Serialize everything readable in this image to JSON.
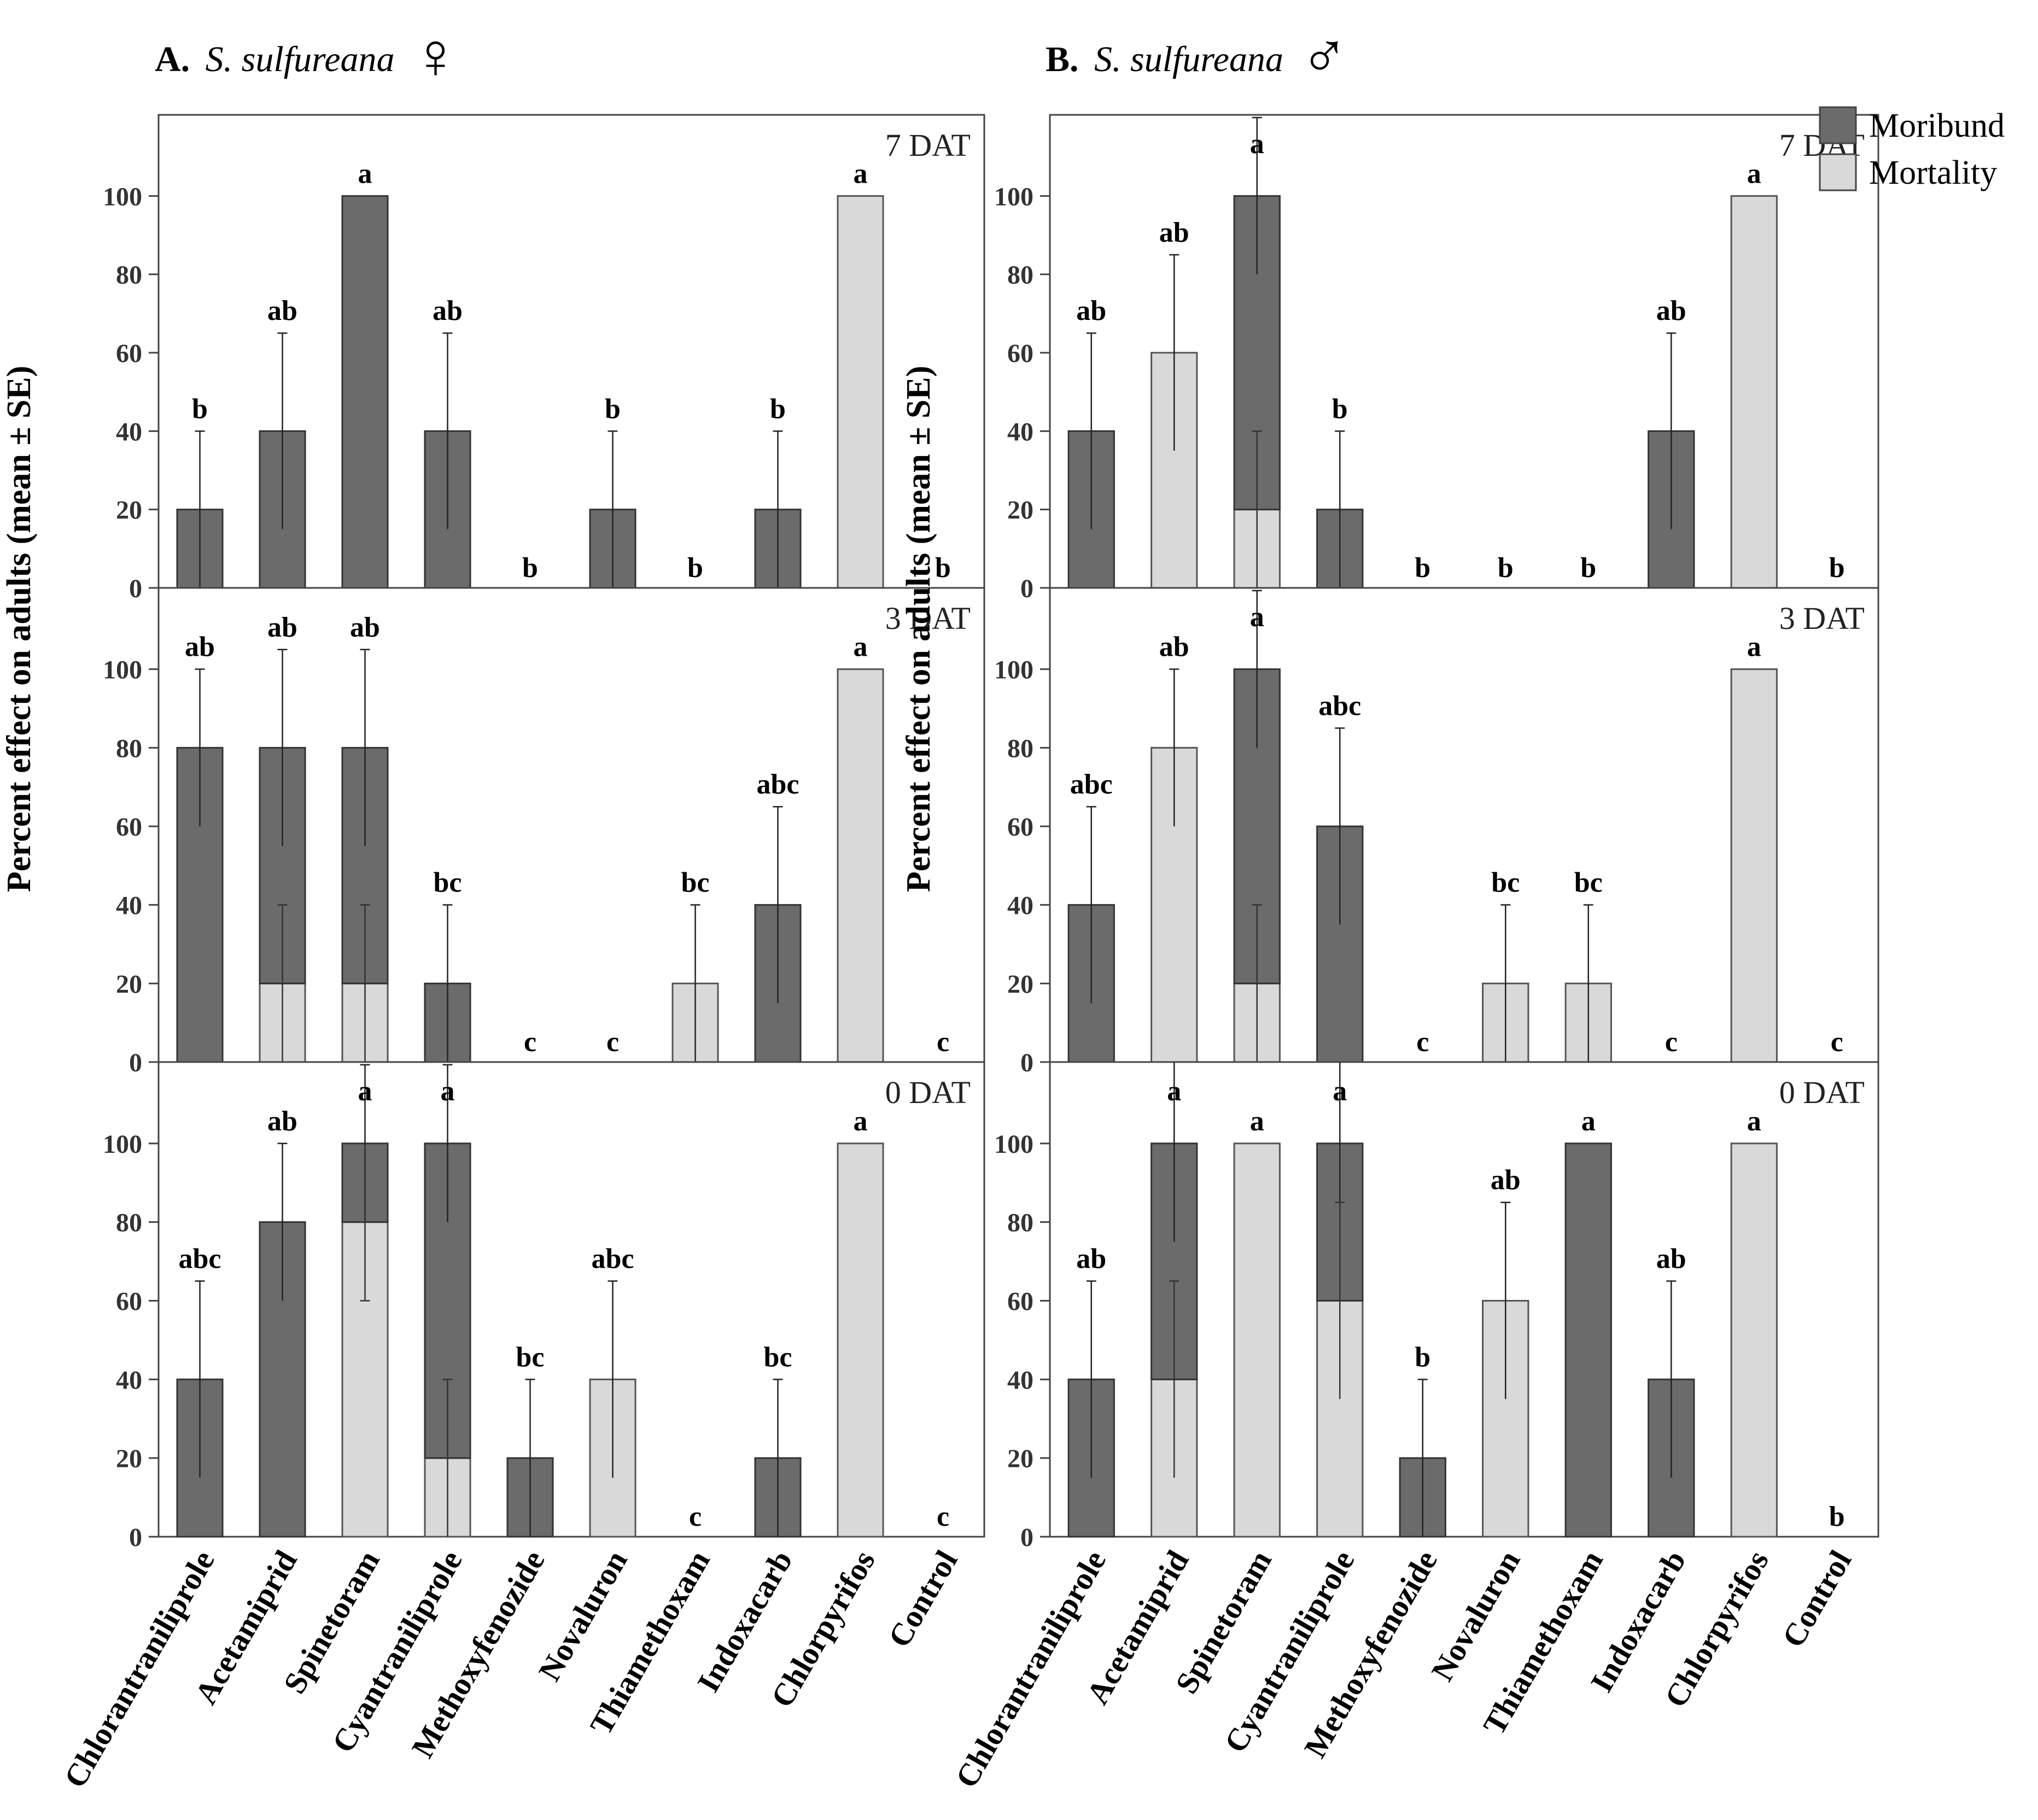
{
  "colors": {
    "moribund": "#6b6b6b",
    "mortality": "#d9d9d9",
    "frame": "#444444",
    "text": "#000000"
  },
  "legend": {
    "moribund": "Moribund",
    "mortality": "Mortality"
  },
  "y_axis_label": "Percent effect on adults (mean ± SE)",
  "chart_data": [
    {
      "type": "bar",
      "stacked": true,
      "panel_letter": "A.",
      "species": "S. sulfureana",
      "sex_symbol": "♀",
      "ylabel": "Percent effect on adults (mean ± SE)",
      "ylim": [
        0,
        120
      ],
      "yticks": [
        0,
        20,
        40,
        60,
        80,
        100
      ],
      "categories": [
        "Chlorantraniliprole",
        "Acetamiprid",
        "Spinetoram",
        "Cyantraniliprole",
        "Methoxyfenozide",
        "Novaluron",
        "Thiamethoxam",
        "Indoxacarb",
        "Chlorpyrifos",
        "Control"
      ],
      "subplots": [
        {
          "label": "7 DAT",
          "mortality": [
            0,
            0,
            0,
            0,
            0,
            0,
            0,
            0,
            100,
            0
          ],
          "moribund": [
            20,
            40,
            100,
            40,
            0,
            20,
            0,
            20,
            0,
            0
          ],
          "error_top": [
            40,
            65,
            null,
            65,
            null,
            40,
            null,
            40,
            null,
            null
          ],
          "mortality_error_top": [
            null,
            null,
            null,
            null,
            null,
            null,
            null,
            null,
            null,
            null
          ],
          "letters": [
            "b",
            "ab",
            "a",
            "ab",
            "b",
            "b",
            "b",
            "b",
            "a",
            "b"
          ]
        },
        {
          "label": "3 DAT",
          "mortality": [
            0,
            20,
            20,
            0,
            0,
            0,
            20,
            0,
            100,
            0
          ],
          "moribund": [
            80,
            60,
            60,
            20,
            0,
            0,
            0,
            40,
            0,
            0
          ],
          "error_top": [
            100,
            105,
            105,
            40,
            null,
            null,
            40,
            65,
            null,
            null
          ],
          "mortality_error_top": [
            null,
            40,
            40,
            null,
            null,
            null,
            null,
            null,
            null,
            null
          ],
          "letters": [
            "ab",
            "ab",
            "ab",
            "bc",
            "c",
            "c",
            "bc",
            "abc",
            "a",
            "c"
          ]
        },
        {
          "label": "0 DAT",
          "mortality": [
            0,
            0,
            80,
            20,
            0,
            40,
            0,
            0,
            100,
            0
          ],
          "moribund": [
            40,
            80,
            20,
            80,
            20,
            0,
            0,
            20,
            0,
            0
          ],
          "error_top": [
            65,
            100,
            120,
            120,
            40,
            65,
            null,
            40,
            null,
            null
          ],
          "mortality_error_top": [
            null,
            null,
            60,
            40,
            null,
            null,
            null,
            null,
            null,
            null
          ],
          "letters": [
            "abc",
            "ab",
            "a",
            "a",
            "bc",
            "abc",
            "c",
            "bc",
            "a",
            "c"
          ]
        }
      ]
    },
    {
      "type": "bar",
      "stacked": true,
      "panel_letter": "B.",
      "species": "S. sulfureana",
      "sex_symbol": "♂",
      "ylabel": "Percent effect on adults (mean ± SE)",
      "ylim": [
        0,
        120
      ],
      "yticks": [
        0,
        20,
        40,
        60,
        80,
        100
      ],
      "categories": [
        "Chlorantraniliprole",
        "Acetamiprid",
        "Spinetoram",
        "Cyantraniliprole",
        "Methoxyfenozide",
        "Novaluron",
        "Thiamethoxam",
        "Indoxacarb",
        "Chlorpyrifos",
        "Control"
      ],
      "subplots": [
        {
          "label": "7 DAT",
          "mortality": [
            0,
            60,
            20,
            0,
            0,
            0,
            0,
            0,
            100,
            0
          ],
          "moribund": [
            40,
            0,
            80,
            20,
            0,
            0,
            0,
            40,
            0,
            0
          ],
          "error_top": [
            65,
            85,
            120,
            40,
            null,
            null,
            null,
            65,
            null,
            null
          ],
          "mortality_error_top": [
            null,
            null,
            40,
            null,
            null,
            null,
            null,
            null,
            null,
            null
          ],
          "letters": [
            "ab",
            "ab",
            "a",
            "b",
            "b",
            "b",
            "b",
            "ab",
            "a",
            "b"
          ]
        },
        {
          "label": "3 DAT",
          "mortality": [
            0,
            80,
            20,
            0,
            0,
            20,
            20,
            0,
            100,
            0
          ],
          "moribund": [
            40,
            0,
            80,
            60,
            0,
            0,
            0,
            0,
            0,
            0
          ],
          "error_top": [
            65,
            100,
            120,
            85,
            null,
            40,
            40,
            null,
            null,
            null
          ],
          "mortality_error_top": [
            null,
            null,
            40,
            null,
            null,
            null,
            null,
            null,
            null,
            null
          ],
          "letters": [
            "abc",
            "ab",
            "a",
            "abc",
            "c",
            "bc",
            "bc",
            "c",
            "a",
            "c"
          ]
        },
        {
          "label": "0 DAT",
          "mortality": [
            0,
            40,
            100,
            60,
            0,
            60,
            0,
            0,
            100,
            0
          ],
          "moribund": [
            40,
            60,
            0,
            40,
            20,
            0,
            100,
            40,
            0,
            0
          ],
          "error_top": [
            65,
            125,
            null,
            125,
            40,
            85,
            null,
            65,
            null,
            null
          ],
          "mortality_error_top": [
            null,
            65,
            null,
            85,
            null,
            null,
            null,
            null,
            null,
            null
          ],
          "letters": [
            "ab",
            "a",
            "a",
            "a",
            "b",
            "ab",
            "a",
            "ab",
            "a",
            "b"
          ]
        }
      ]
    }
  ]
}
